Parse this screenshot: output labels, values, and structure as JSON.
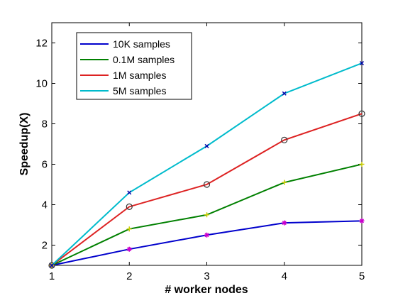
{
  "chart_data": {
    "type": "line",
    "title": "",
    "xlabel": "# worker nodes",
    "ylabel": "Speedup(X)",
    "x": [
      1,
      2,
      3,
      4,
      5
    ],
    "xlim": [
      1,
      5
    ],
    "ylim": [
      1,
      13
    ],
    "xticks": [
      1,
      2,
      3,
      4,
      5
    ],
    "yticks": [
      2,
      4,
      6,
      8,
      10,
      12
    ],
    "grid": false,
    "legend_position": "top-left",
    "series": [
      {
        "name": "10K samples",
        "color": "#0000cc",
        "marker": "star",
        "marker_color": "#cc00cc",
        "values": [
          1.0,
          1.8,
          2.5,
          3.1,
          3.2
        ]
      },
      {
        "name": "0.1M samples",
        "color": "#008000",
        "marker": "plus",
        "marker_color": "#cccc00",
        "values": [
          1.0,
          2.8,
          3.5,
          5.1,
          6.0
        ]
      },
      {
        "name": "1M samples",
        "color": "#dd2222",
        "marker": "circle",
        "marker_color": "#333333",
        "values": [
          1.0,
          3.9,
          5.0,
          7.2,
          8.5
        ]
      },
      {
        "name": "5M samples",
        "color": "#00bbcc",
        "marker": "x",
        "marker_color": "#0000aa",
        "values": [
          1.0,
          4.6,
          6.9,
          9.5,
          11.0
        ]
      }
    ]
  }
}
